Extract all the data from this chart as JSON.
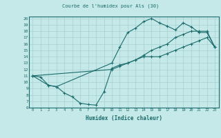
{
  "title": "Courbe de l'humidex pour Als (30)",
  "xlabel": "Humidex (Indice chaleur)",
  "ylabel": "",
  "xlim": [
    -0.5,
    23.5
  ],
  "ylim": [
    6,
    20.3
  ],
  "bg_color": "#c5e8e8",
  "grid_color": "#a8d0d0",
  "line_color": "#1a6b6b",
  "line1_x": [
    0,
    1,
    2,
    3,
    4,
    5,
    6,
    7,
    8,
    9,
    10,
    11,
    12,
    13,
    14,
    15,
    16,
    17,
    18,
    19,
    20,
    21,
    22,
    23
  ],
  "line1_y": [
    11.0,
    10.8,
    9.5,
    9.3,
    8.3,
    7.7,
    6.7,
    6.5,
    6.4,
    8.5,
    12.2,
    12.7,
    13.0,
    13.5,
    14.0,
    14.0,
    14.0,
    14.5,
    15.0,
    15.5,
    16.0,
    16.5,
    17.0,
    15.5
  ],
  "line2_x": [
    0,
    2,
    3,
    10,
    11,
    12,
    13,
    14,
    15,
    16,
    17,
    18,
    19,
    20,
    21,
    22,
    23
  ],
  "line2_y": [
    11.0,
    9.5,
    9.3,
    13.0,
    15.5,
    17.8,
    18.5,
    19.5,
    20.0,
    19.3,
    18.8,
    18.2,
    19.3,
    18.7,
    17.8,
    17.8,
    15.5
  ],
  "line3_x": [
    0,
    10,
    11,
    12,
    13,
    14,
    15,
    16,
    17,
    18,
    19,
    20,
    21,
    22,
    23
  ],
  "line3_y": [
    11.0,
    12.0,
    12.5,
    13.0,
    13.5,
    14.2,
    15.0,
    15.5,
    16.0,
    17.0,
    17.5,
    18.0,
    18.0,
    18.0,
    15.5
  ],
  "xticks": [
    0,
    1,
    2,
    3,
    4,
    5,
    6,
    7,
    8,
    9,
    10,
    11,
    12,
    13,
    14,
    15,
    16,
    17,
    18,
    19,
    20,
    21,
    22,
    23
  ],
  "yticks": [
    6,
    7,
    8,
    9,
    10,
    11,
    12,
    13,
    14,
    15,
    16,
    17,
    18,
    19,
    20
  ]
}
